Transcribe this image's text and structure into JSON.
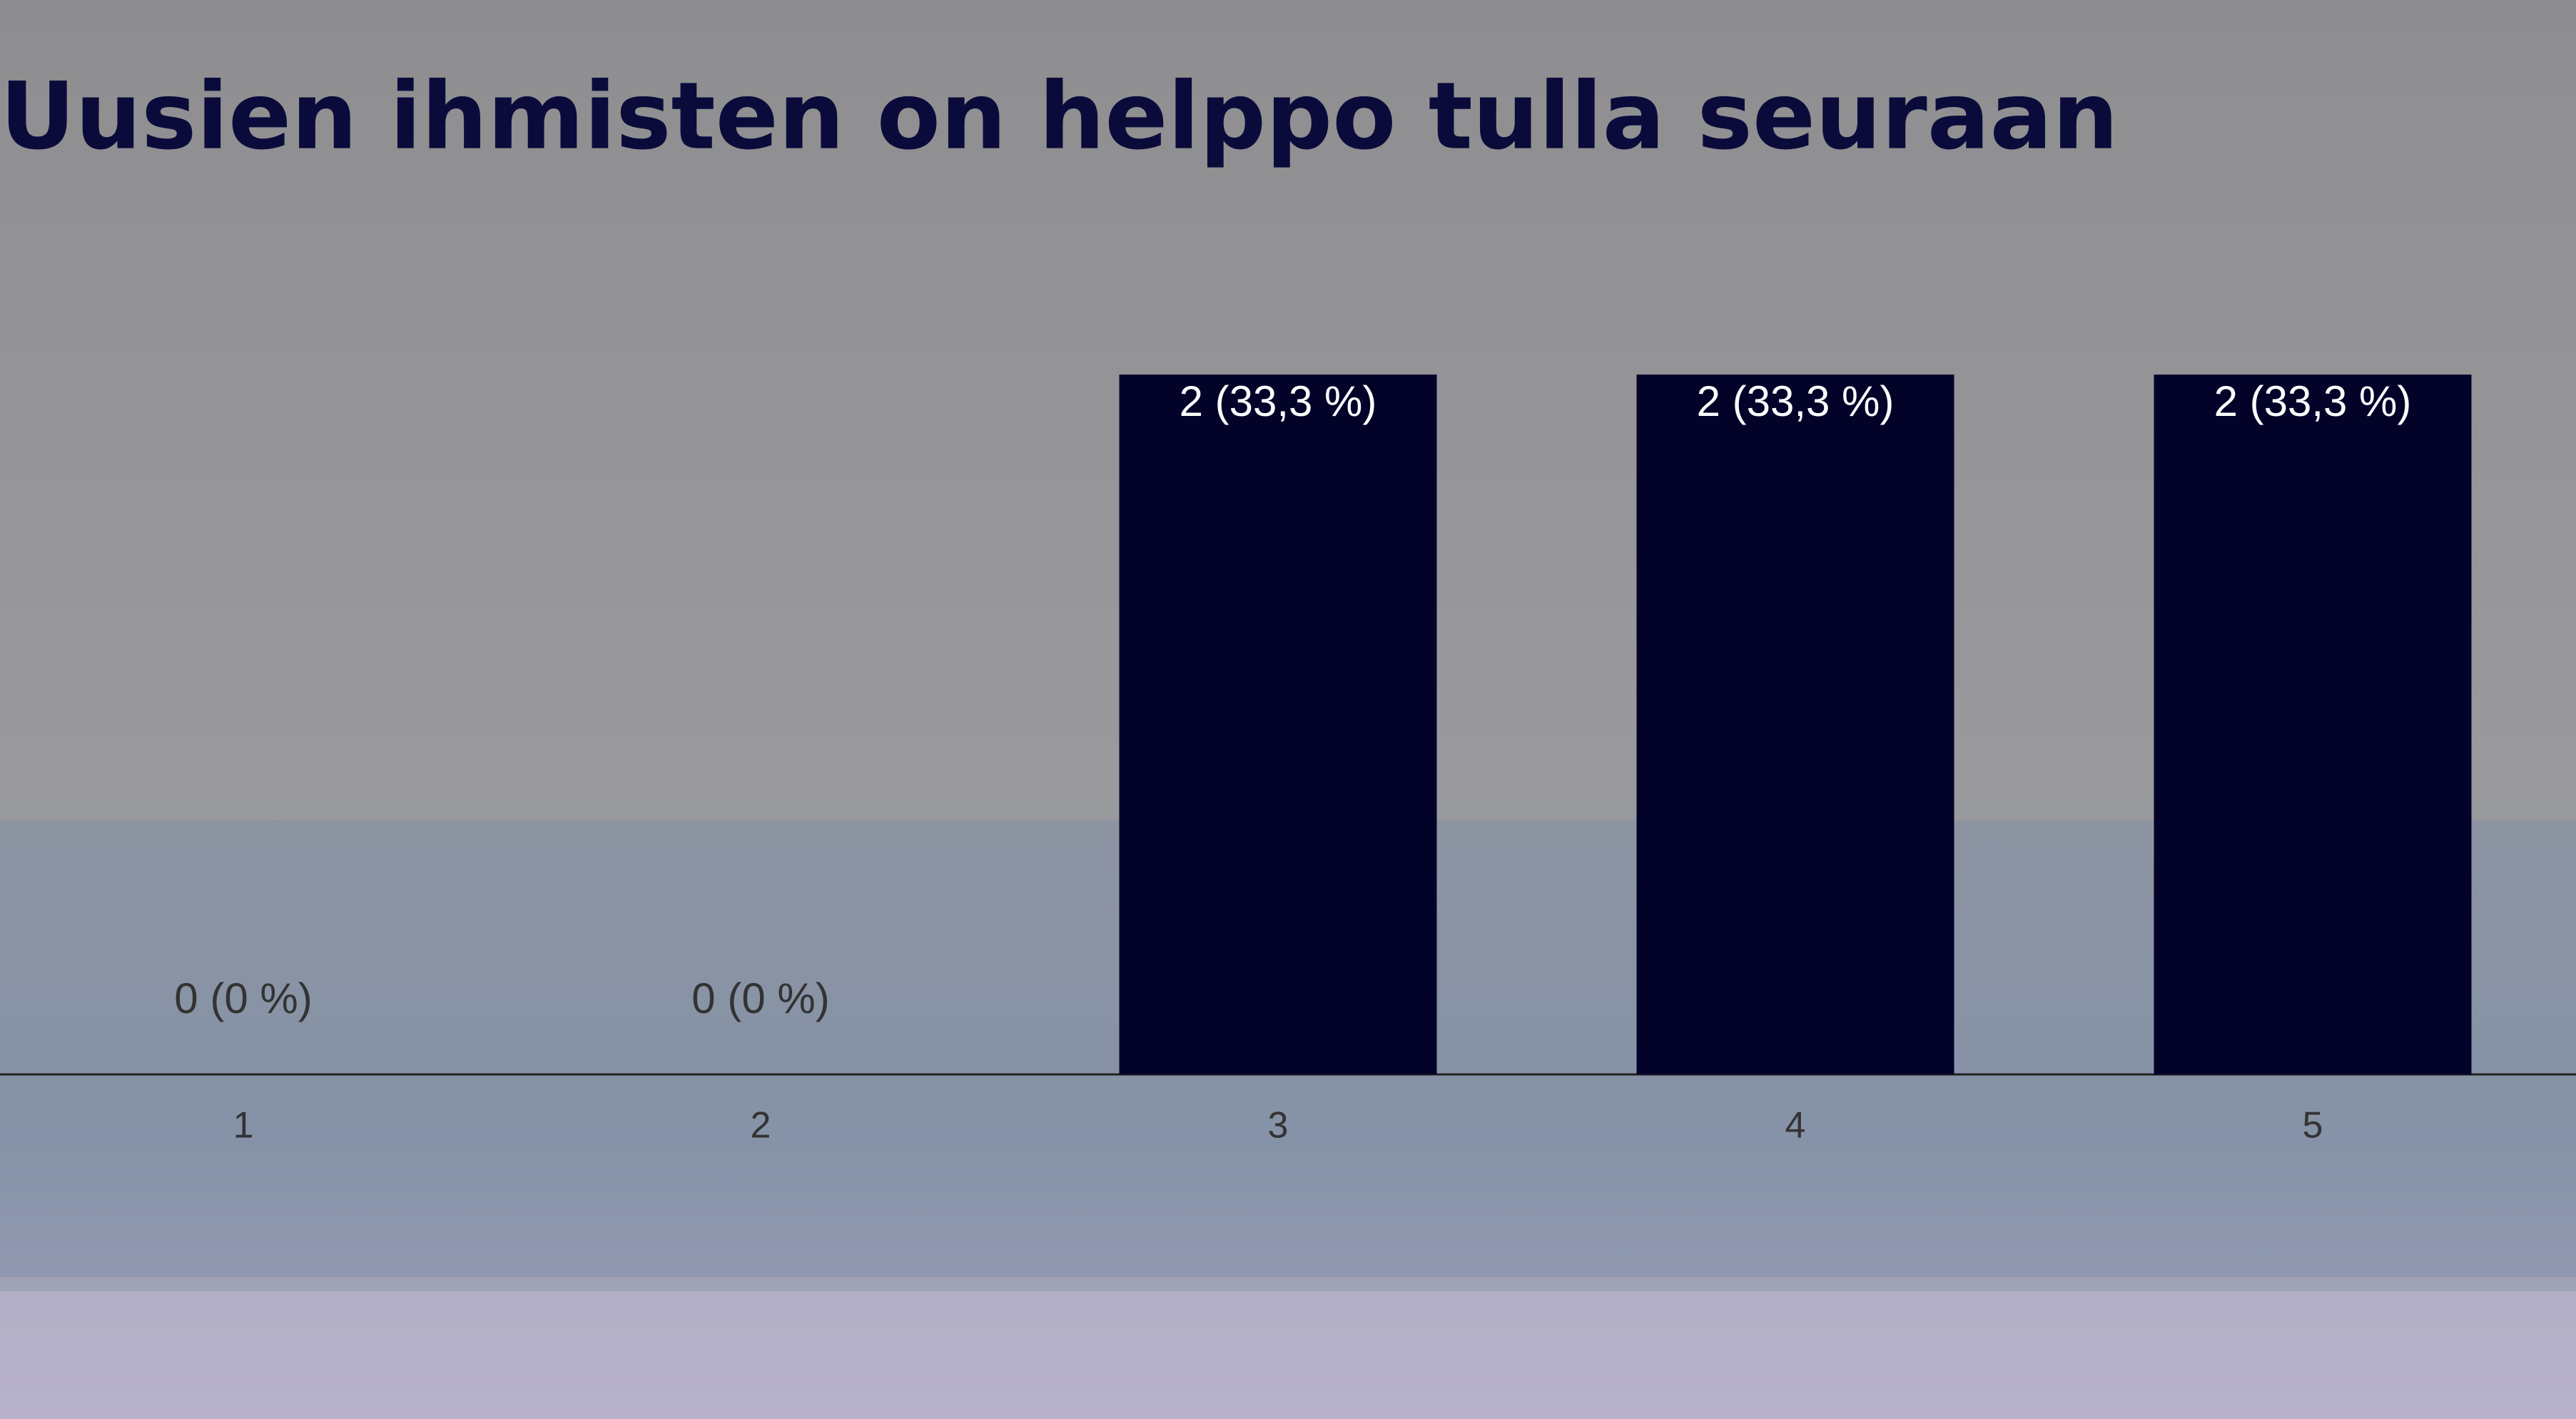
{
  "chart_data": {
    "type": "bar",
    "title": "Uusien ihmisten on helppo tulla seuraan",
    "categories": [
      "1",
      "2",
      "3",
      "4",
      "5"
    ],
    "values": [
      0,
      0,
      2,
      2,
      2
    ],
    "value_labels": [
      "0 (0 %)",
      "0 (0 %)",
      "2 (33,3 %)",
      "2 (33,3 %)",
      "2 (33,3 %)"
    ],
    "color": "#03032a"
  }
}
